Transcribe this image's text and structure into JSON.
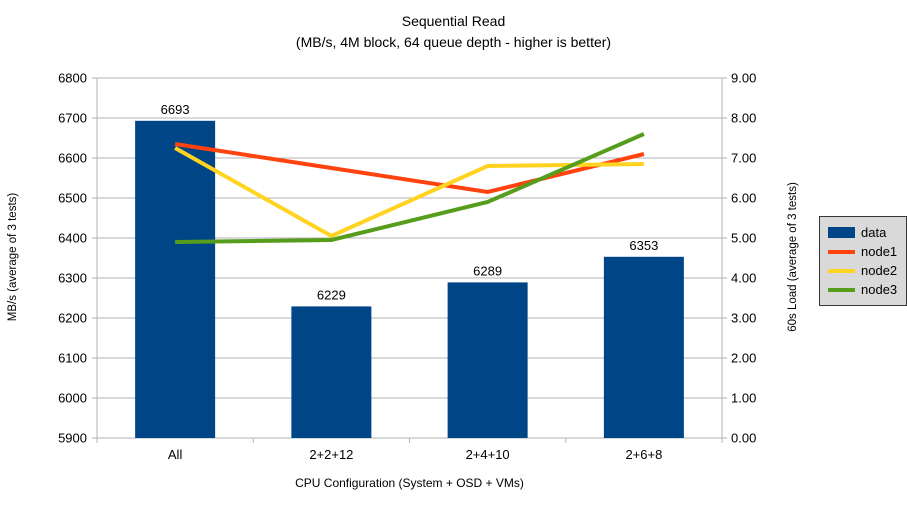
{
  "chart_data": {
    "type": "bar",
    "combo": "bar+line",
    "title": "Sequential Read",
    "subtitle": "(MB/s, 4M block, 64 queue depth - higher is better)",
    "categories": [
      "All",
      "2+2+12",
      "2+4+10",
      "2+6+8"
    ],
    "xlabel": "CPU Configuration (System + OSD + VMs)",
    "left_axis": {
      "label": "MB/s (average of 3 tests)",
      "min": 5900,
      "max": 6800,
      "step": 100,
      "decimals": 0,
      "tick_labels": [
        "5900",
        "6000",
        "6100",
        "6200",
        "6300",
        "6400",
        "6500",
        "6600",
        "6700",
        "6800"
      ]
    },
    "right_axis": {
      "label": "60s Load (average of 3 tests)",
      "min": 0,
      "max": 9,
      "step": 1,
      "decimals": 2,
      "tick_labels": [
        "0.00",
        "1.00",
        "2.00",
        "3.00",
        "4.00",
        "5.00",
        "6.00",
        "7.00",
        "8.00",
        "9.00"
      ]
    },
    "series": [
      {
        "name": "data",
        "type": "bar",
        "axis": "left",
        "color": "#004586",
        "values": [
          6693,
          6229,
          6289,
          6353
        ],
        "data_labels": [
          "6693",
          "6229",
          "6289",
          "6353"
        ]
      },
      {
        "name": "node1",
        "type": "line",
        "axis": "right",
        "color": "#FF420E",
        "values": [
          7.35,
          6.75,
          6.15,
          7.1
        ]
      },
      {
        "name": "node2",
        "type": "line",
        "axis": "right",
        "color": "#FFD320",
        "values": [
          7.25,
          5.05,
          6.8,
          6.85
        ]
      },
      {
        "name": "node3",
        "type": "line",
        "axis": "right",
        "color": "#579D1C",
        "values": [
          4.9,
          4.95,
          5.9,
          7.6
        ]
      }
    ],
    "grid": {
      "show_horizontal": true,
      "color": "#b3b3b3",
      "axis_color": "#b3b3b3"
    },
    "legend": {
      "position": "right",
      "background": "#d9d9d9",
      "border": "#363636"
    }
  }
}
